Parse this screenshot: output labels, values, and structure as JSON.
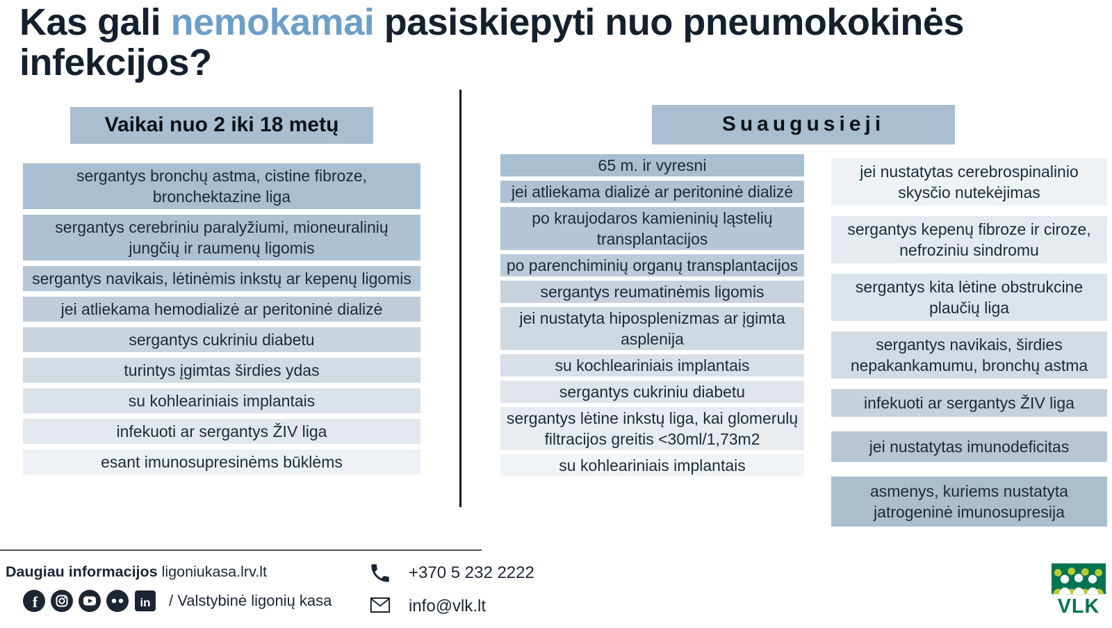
{
  "title": {
    "prefix": "Kas gali ",
    "highlight": "nemokamai",
    "suffix": " pasiskiepyti nuo pneumokokinės infekcijos?"
  },
  "colors": {
    "title_text": "#15202e",
    "title_highlight": "#6d9ec9",
    "header_bg": "#a9bed1",
    "item_text": "#1c2a38",
    "divider": "#0d1520",
    "logo_green": "#007450",
    "logo_lime": "#b5cc34"
  },
  "children_section": {
    "header": "Vaikai nuo 2 iki 18 metų",
    "items": [
      {
        "text": "sergantys bronchų astma, cistine fibroze, bronchektazine liga",
        "bg": "#a8bed1"
      },
      {
        "text": "sergantys cerebriniu paralyžiumi, mioneuralinių jungčių ir raumenų ligomis",
        "bg": "#adc1d3"
      },
      {
        "text": "sergantys navikais, lėtinėmis inkstų ar kepenų ligomis",
        "bg": "#b5c6d6"
      },
      {
        "text": "jei atliekama hemodializė ar peritoninė dializė",
        "bg": "#bfcdda"
      },
      {
        "text": "sergantys cukriniu diabetu",
        "bg": "#c9d4df"
      },
      {
        "text": "turintys įgimtas širdies ydas",
        "bg": "#d2dbe4"
      },
      {
        "text": "su kohleariniais implantais",
        "bg": "#dbe2e9"
      },
      {
        "text": "infekuoti ar sergantys ŽIV liga",
        "bg": "#e3e8ee"
      },
      {
        "text": "esant imunosupresinėms būklėms",
        "bg": "#edf0f4"
      }
    ]
  },
  "adults_section": {
    "header": "Suaugusieji",
    "col1_items": [
      {
        "text": "65 m. ir vyresni",
        "bg": "#a8bed1"
      },
      {
        "text": "jei atliekama dializė ar peritoninė dializė",
        "bg": "#adc1d3"
      },
      {
        "text": "po kraujodaros kamieninių ląstelių transplantacijos",
        "bg": "#b4c5d5"
      },
      {
        "text": "po parenchiminių organų transplantacijos",
        "bg": "#bccbd9"
      },
      {
        "text": "sergantys reumatinėmis ligomis",
        "bg": "#c6d2dd"
      },
      {
        "text": "jei nustatyta hiposplenizmas ar įgimta asplenija",
        "bg": "#cfd9e2"
      },
      {
        "text": "su kochleariniais implantais",
        "bg": "#d8dfe7"
      },
      {
        "text": "sergantys cukriniu diabetu",
        "bg": "#dfe5eb"
      },
      {
        "text": "sergantys lėtine inkstų liga, kai glomerulų filtracijos greitis <30ml/1,73m2",
        "bg": "#e8ecf1"
      },
      {
        "text": "su kohleariniais implantais",
        "bg": "#f1f4f7"
      }
    ],
    "col2_items": [
      {
        "text": "jei nustatytas cerebrospinalinio skysčio nutekėjimas",
        "bg": "#eef2f5"
      },
      {
        "text": "sergantys kepenų fibroze ir ciroze, nefroziniu sindromu",
        "bg": "#e5eaef"
      },
      {
        "text": "sergantys kita lėtine obstrukcine plaučių liga",
        "bg": "#dde3ea"
      },
      {
        "text": "sergantys navikais, širdies nepakankamumu, bronchų astma",
        "bg": "#d2dbe3"
      },
      {
        "text": "infekuoti ar sergantys ŽIV liga",
        "bg": "#c5d1db"
      },
      {
        "text": "jei nustatytas imunodeficitas",
        "bg": "#b7c6d2"
      },
      {
        "text": "asmenys, kuriems nustatyta jatrogeninė imunosupresija",
        "bg": "#abbecc"
      }
    ]
  },
  "footer": {
    "info_label": "Daugiau informacijos",
    "info_value": " ligoniukasa.lrv.lt",
    "social_icons": [
      "facebook",
      "instagram",
      "youtube",
      "flickr",
      "linkedin"
    ],
    "social_text": "/ Valstybinė ligonių kasa",
    "phone": "+370 5 232 2222",
    "email": "info@vlk.lt",
    "logo_text": "VLK"
  }
}
